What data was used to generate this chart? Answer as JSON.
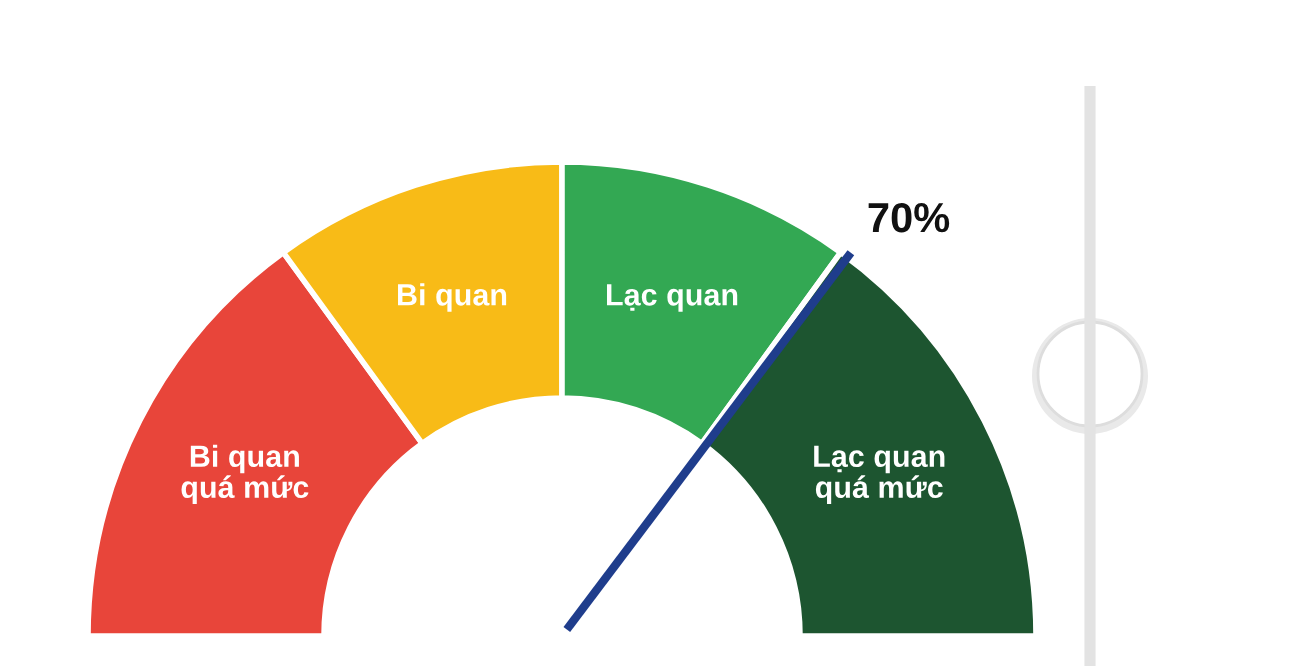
{
  "chart_data": {
    "type": "donut",
    "categories": [
      "Bi quan\nquá mức",
      "Bi quan",
      "Lạc quan",
      "Lạc quan\nquá mức"
    ],
    "values": [
      30,
      20,
      20,
      30
    ],
    "colors": [
      "#e8453a",
      "#f8bb17",
      "#33a853",
      "#1d5530"
    ],
    "needle": "Lạc quan\nquá mức",
    "annotations": [
      "70%"
    ]
  }
}
